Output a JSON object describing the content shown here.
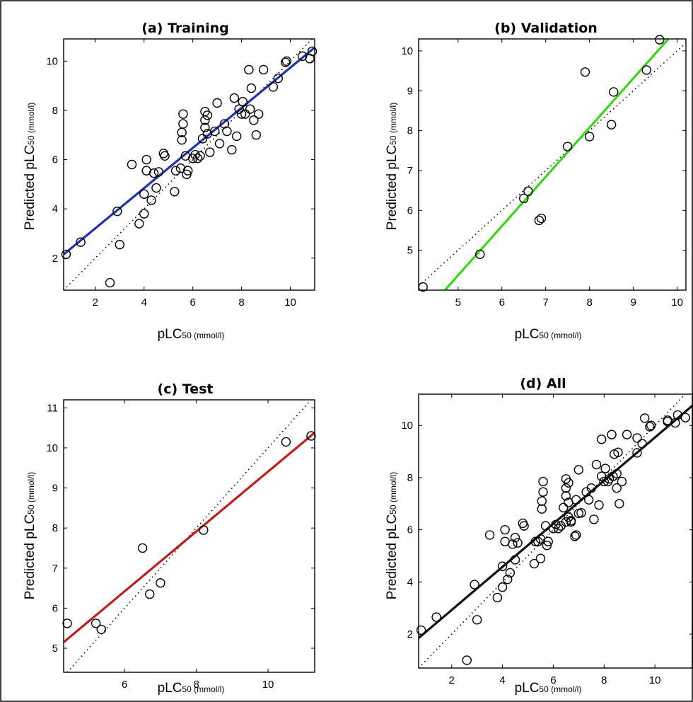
{
  "chart_data": [
    {
      "type": "scatter",
      "title": "(a) Training",
      "xlabel": {
        "main": "pLC",
        "sub": "50 (mmol/l)"
      },
      "ylabel": {
        "main": "Predicted pLC",
        "sub": "50 (mmol/l)"
      },
      "xlim": [
        0.7,
        11.0
      ],
      "ylim": [
        0.7,
        10.9
      ],
      "xticks": [
        2,
        4,
        6,
        8,
        10
      ],
      "yticks": [
        2,
        4,
        6,
        8,
        10
      ],
      "fit_color": "#1f33a8",
      "fit_line": [
        [
          0.7,
          2.15
        ],
        [
          11.0,
          10.55
        ]
      ],
      "identity": true,
      "points": [
        [
          0.8,
          2.15
        ],
        [
          1.4,
          2.65
        ],
        [
          2.6,
          1.0
        ],
        [
          2.9,
          3.9
        ],
        [
          3.0,
          2.55
        ],
        [
          3.5,
          5.8
        ],
        [
          3.8,
          3.4
        ],
        [
          4.0,
          3.8
        ],
        [
          4.0,
          4.6
        ],
        [
          4.1,
          6.0
        ],
        [
          4.1,
          5.55
        ],
        [
          4.3,
          4.35
        ],
        [
          4.4,
          5.45
        ],
        [
          4.5,
          4.85
        ],
        [
          4.6,
          5.5
        ],
        [
          4.8,
          6.25
        ],
        [
          4.85,
          6.15
        ],
        [
          5.25,
          4.7
        ],
        [
          5.3,
          5.55
        ],
        [
          5.5,
          5.65
        ],
        [
          5.55,
          6.8
        ],
        [
          5.55,
          7.1
        ],
        [
          5.6,
          7.85
        ],
        [
          5.6,
          7.45
        ],
        [
          5.7,
          6.15
        ],
        [
          5.75,
          5.4
        ],
        [
          5.8,
          5.55
        ],
        [
          6.0,
          6.05
        ],
        [
          6.1,
          6.2
        ],
        [
          6.2,
          6.05
        ],
        [
          6.3,
          6.15
        ],
        [
          6.4,
          6.85
        ],
        [
          6.5,
          7.95
        ],
        [
          6.5,
          7.6
        ],
        [
          6.5,
          7.3
        ],
        [
          6.6,
          7.05
        ],
        [
          6.6,
          7.8
        ],
        [
          6.7,
          6.3
        ],
        [
          6.9,
          7.15
        ],
        [
          7.0,
          8.3
        ],
        [
          7.1,
          6.65
        ],
        [
          7.3,
          7.45
        ],
        [
          7.4,
          7.15
        ],
        [
          7.6,
          6.4
        ],
        [
          7.7,
          8.5
        ],
        [
          7.8,
          6.95
        ],
        [
          7.9,
          8.05
        ],
        [
          8.0,
          7.85
        ],
        [
          8.05,
          8.35
        ],
        [
          8.15,
          7.85
        ],
        [
          8.3,
          9.65
        ],
        [
          8.35,
          8.05
        ],
        [
          8.4,
          8.9
        ],
        [
          8.5,
          7.6
        ],
        [
          8.6,
          7.0
        ],
        [
          8.7,
          7.85
        ],
        [
          8.9,
          9.65
        ],
        [
          9.3,
          8.95
        ],
        [
          9.5,
          9.3
        ],
        [
          9.8,
          9.95
        ],
        [
          9.85,
          10.0
        ],
        [
          10.5,
          10.2
        ],
        [
          10.8,
          10.1
        ],
        [
          10.9,
          10.4
        ]
      ]
    },
    {
      "type": "scatter",
      "title": "(b) Validation",
      "xlabel": {
        "main": "pLC",
        "sub": "50 (mmol/l)"
      },
      "ylabel": {
        "main": "Predicted pLC",
        "sub": "50 (mmol/l)"
      },
      "xlim": [
        4.1,
        10.2
      ],
      "ylim": [
        4.0,
        10.3
      ],
      "xticks": [
        5,
        6,
        7,
        8,
        9,
        10
      ],
      "yticks": [
        5,
        6,
        7,
        8,
        9,
        10
      ],
      "fit_color": "#39d615",
      "fit_line": [
        [
          4.7,
          4.0
        ],
        [
          9.8,
          10.3
        ]
      ],
      "identity": true,
      "points": [
        [
          4.2,
          4.08
        ],
        [
          5.5,
          4.9
        ],
        [
          6.5,
          6.3
        ],
        [
          6.6,
          6.48
        ],
        [
          6.85,
          5.75
        ],
        [
          6.9,
          5.8
        ],
        [
          7.5,
          7.6
        ],
        [
          7.9,
          9.47
        ],
        [
          8.0,
          7.85
        ],
        [
          8.5,
          8.15
        ],
        [
          8.55,
          8.97
        ],
        [
          9.3,
          9.52
        ],
        [
          9.6,
          10.28
        ]
      ]
    },
    {
      "type": "scatter",
      "title": "(c) Test",
      "xlabel": {
        "main": "pLC",
        "sub": "50 (mmol/l)"
      },
      "ylabel": {
        "main": "Predicted pLC",
        "sub": "50 (mmol/l)"
      },
      "xlim": [
        4.3,
        11.3
      ],
      "ylim": [
        4.4,
        11.2
      ],
      "xticks": [
        6,
        8,
        10
      ],
      "yticks": [
        5,
        6,
        7,
        8,
        9,
        10,
        11
      ],
      "fit_color": "#c01e1e",
      "fit_line": [
        [
          4.3,
          5.15
        ],
        [
          11.3,
          10.38
        ]
      ],
      "identity": true,
      "points": [
        [
          4.4,
          5.62
        ],
        [
          5.2,
          5.62
        ],
        [
          5.35,
          5.47
        ],
        [
          6.5,
          7.5
        ],
        [
          6.7,
          6.35
        ],
        [
          7.0,
          6.63
        ],
        [
          8.2,
          7.95
        ],
        [
          10.5,
          10.15
        ],
        [
          11.2,
          10.3
        ]
      ]
    },
    {
      "type": "scatter",
      "title": "(d) All",
      "xlabel": {
        "main": "pLC",
        "sub": "50 (mmol/l)"
      },
      "ylabel": {
        "main": "Predicted pLC",
        "sub": "50 (mmol/l)"
      },
      "xlim": [
        0.7,
        11.5
      ],
      "ylim": [
        0.7,
        11.2
      ],
      "xticks": [
        2,
        4,
        6,
        8,
        10
      ],
      "yticks": [
        2,
        4,
        6,
        8,
        10
      ],
      "fit_color": "#111111",
      "fit_line": [
        [
          0.7,
          1.85
        ],
        [
          11.5,
          10.78
        ]
      ],
      "identity": true,
      "points": [
        [
          0.8,
          2.15
        ],
        [
          1.4,
          2.65
        ],
        [
          2.6,
          1.0
        ],
        [
          2.9,
          3.9
        ],
        [
          3.0,
          2.55
        ],
        [
          3.5,
          5.8
        ],
        [
          3.8,
          3.4
        ],
        [
          4.0,
          3.8
        ],
        [
          4.0,
          4.6
        ],
        [
          4.1,
          6.0
        ],
        [
          4.1,
          5.55
        ],
        [
          4.2,
          4.1
        ],
        [
          4.3,
          4.35
        ],
        [
          4.4,
          5.45
        ],
        [
          4.5,
          5.7
        ],
        [
          4.5,
          4.85
        ],
        [
          4.6,
          5.5
        ],
        [
          4.8,
          6.25
        ],
        [
          4.85,
          6.15
        ],
        [
          5.25,
          4.7
        ],
        [
          5.3,
          5.55
        ],
        [
          5.4,
          5.55
        ],
        [
          5.5,
          4.9
        ],
        [
          5.5,
          5.65
        ],
        [
          5.55,
          6.8
        ],
        [
          5.55,
          7.1
        ],
        [
          5.6,
          7.85
        ],
        [
          5.6,
          7.45
        ],
        [
          5.7,
          6.15
        ],
        [
          5.75,
          5.4
        ],
        [
          5.8,
          5.55
        ],
        [
          6.0,
          6.05
        ],
        [
          6.1,
          6.2
        ],
        [
          6.2,
          6.05
        ],
        [
          6.3,
          6.15
        ],
        [
          6.4,
          6.85
        ],
        [
          6.5,
          6.3
        ],
        [
          6.5,
          7.95
        ],
        [
          6.5,
          7.6
        ],
        [
          6.5,
          7.3
        ],
        [
          6.6,
          6.48
        ],
        [
          6.6,
          7.05
        ],
        [
          6.6,
          7.8
        ],
        [
          6.7,
          6.35
        ],
        [
          6.7,
          6.3
        ],
        [
          6.85,
          5.75
        ],
        [
          6.9,
          5.8
        ],
        [
          6.9,
          7.15
        ],
        [
          7.0,
          8.3
        ],
        [
          7.0,
          6.63
        ],
        [
          7.1,
          6.65
        ],
        [
          7.3,
          7.45
        ],
        [
          7.4,
          7.15
        ],
        [
          7.5,
          7.6
        ],
        [
          7.6,
          6.4
        ],
        [
          7.7,
          8.5
        ],
        [
          7.8,
          6.95
        ],
        [
          7.9,
          9.47
        ],
        [
          7.9,
          8.05
        ],
        [
          8.0,
          7.85
        ],
        [
          8.05,
          8.35
        ],
        [
          8.15,
          7.85
        ],
        [
          8.2,
          7.95
        ],
        [
          8.3,
          9.65
        ],
        [
          8.35,
          8.05
        ],
        [
          8.4,
          8.9
        ],
        [
          8.5,
          8.15
        ],
        [
          8.5,
          7.6
        ],
        [
          8.55,
          8.97
        ],
        [
          8.6,
          7.0
        ],
        [
          8.7,
          7.85
        ],
        [
          8.9,
          9.65
        ],
        [
          9.3,
          8.95
        ],
        [
          9.3,
          9.52
        ],
        [
          9.5,
          9.3
        ],
        [
          9.6,
          10.28
        ],
        [
          9.8,
          9.95
        ],
        [
          9.85,
          10.0
        ],
        [
          10.5,
          10.2
        ],
        [
          10.5,
          10.15
        ],
        [
          10.8,
          10.1
        ],
        [
          10.9,
          10.4
        ],
        [
          11.2,
          10.3
        ]
      ]
    }
  ]
}
